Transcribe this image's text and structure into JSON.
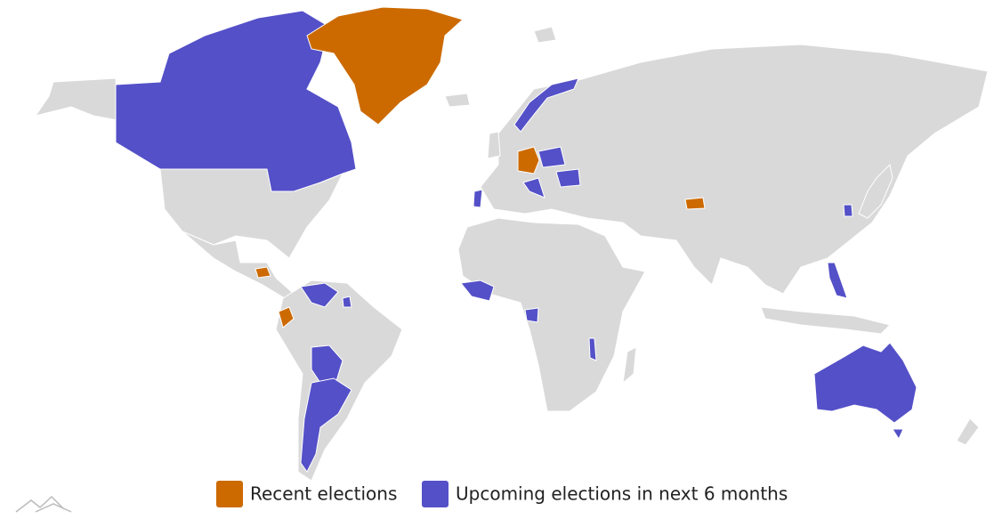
{
  "legend": {
    "items": [
      {
        "label": "Recent elections",
        "color": "#cc6a00"
      },
      {
        "label": "Upcoming elections in next 6 months",
        "color": "#5450c8"
      }
    ]
  }
}
